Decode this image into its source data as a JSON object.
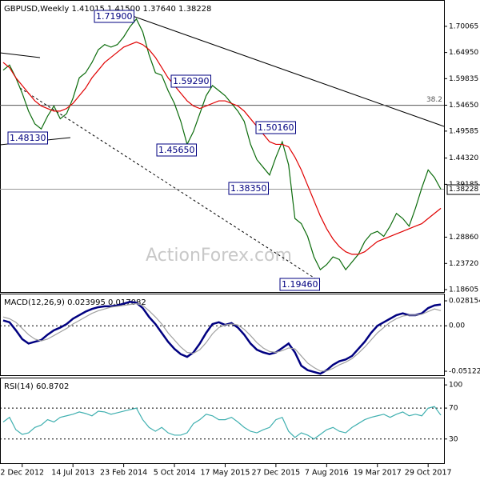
{
  "chart_data": [
    {
      "type": "line",
      "title": "GBPUSD,Weekly  1.41015 1.41500 1.37640 1.38228",
      "watermark": "ActionForex.com",
      "categories": [
        null,
        null,
        null,
        "2 Dec 2012",
        null,
        null,
        null,
        null,
        null,
        null,
        null,
        "14 Jul 2013",
        null,
        null,
        null,
        null,
        null,
        null,
        null,
        "23 Feb 2014",
        null,
        null,
        null,
        null,
        null,
        null,
        null,
        "5 Oct 2014",
        null,
        null,
        null,
        null,
        null,
        null,
        null,
        "17 May 2015",
        null,
        null,
        null,
        null,
        null,
        null,
        null,
        "27 Dec 2015",
        null,
        null,
        null,
        null,
        null,
        null,
        null,
        "7 Aug 2016",
        null,
        null,
        null,
        null,
        null,
        null,
        null,
        "19 Mar 2017",
        null,
        null,
        null,
        null,
        null,
        null,
        null,
        "29 Oct 2017",
        null,
        null
      ],
      "series": [
        {
          "color": "#0b6b0b",
          "values": [
            1.615,
            1.625,
            1.6,
            1.57,
            1.535,
            1.51,
            1.5,
            1.525,
            1.545,
            1.52,
            1.53,
            1.56,
            1.6,
            1.61,
            1.63,
            1.655,
            1.665,
            1.66,
            1.665,
            1.68,
            1.7,
            1.715,
            1.69,
            1.645,
            1.61,
            1.605,
            1.575,
            1.55,
            1.515,
            1.47,
            1.495,
            1.53,
            1.565,
            1.585,
            1.575,
            1.565,
            1.55,
            1.535,
            1.515,
            1.47,
            1.44,
            1.425,
            1.41,
            1.445,
            1.475,
            1.43,
            1.325,
            1.315,
            1.29,
            1.25,
            1.225,
            1.235,
            1.25,
            1.245,
            1.225,
            1.24,
            1.255,
            1.28,
            1.295,
            1.3,
            1.29,
            1.31,
            1.335,
            1.325,
            1.31,
            1.345,
            1.385,
            1.42,
            1.405,
            1.38228
          ]
        },
        {
          "color": "#e00000",
          "values": [
            1.63,
            1.62,
            1.6,
            1.585,
            1.57,
            1.555,
            1.545,
            1.54,
            1.535,
            1.535,
            1.54,
            1.55,
            1.565,
            1.58,
            1.6,
            1.615,
            1.63,
            1.64,
            1.65,
            1.66,
            1.665,
            1.67,
            1.665,
            1.655,
            1.64,
            1.62,
            1.6,
            1.585,
            1.57,
            1.555,
            1.545,
            1.54,
            1.545,
            1.55,
            1.555,
            1.555,
            1.55,
            1.545,
            1.535,
            1.52,
            1.505,
            1.49,
            1.475,
            1.47,
            1.47,
            1.465,
            1.445,
            1.42,
            1.39,
            1.36,
            1.33,
            1.305,
            1.285,
            1.27,
            1.26,
            1.255,
            1.255,
            1.26,
            1.27,
            1.28,
            1.285,
            1.29,
            1.295,
            1.3,
            1.305,
            1.31,
            1.315,
            1.325,
            1.335,
            1.345
          ]
        }
      ],
      "ylim": [
        1.18137,
        1.75055
      ],
      "yticks": [
        1.70065,
        {
          "value": 1.6495,
          "label": "1.64950"
        },
        1.59835,
        {
          "value": 1.5465,
          "label": "1.54650"
        },
        1.49585,
        {
          "value": 1.4432,
          "label": "1.44320"
        },
        1.39185,
        {
          "value": 1.2886,
          "label": "1.28860"
        },
        {
          "value": 1.2372,
          "label": "1.23720"
        },
        1.18605
      ],
      "fib_level": {
        "value": 1.5463,
        "label": "38.2"
      },
      "current_price": 1.38228,
      "annotations": [
        "1.71900",
        "1.59290",
        "1.45650",
        "1.50160",
        "1.38350",
        "1.19460",
        "1.48130"
      ]
    },
    {
      "type": "line",
      "title": "MACD(12,26,9) 0.023995 0.017082",
      "series": [
        {
          "color": "#000080",
          "values": [
            0.006,
            0.004,
            -0.005,
            -0.015,
            -0.02,
            -0.018,
            -0.016,
            -0.01,
            -0.005,
            -0.002,
            0.002,
            0.008,
            0.012,
            0.016,
            0.019,
            0.021,
            0.022,
            0.022,
            0.023,
            0.025,
            0.027,
            0.026,
            0.02,
            0.01,
            0.002,
            -0.008,
            -0.018,
            -0.026,
            -0.032,
            -0.035,
            -0.03,
            -0.02,
            -0.008,
            0.002,
            0.004,
            0.001,
            0.003,
            -0.002,
            -0.01,
            -0.02,
            -0.027,
            -0.03,
            -0.032,
            -0.03,
            -0.025,
            -0.02,
            -0.03,
            -0.045,
            -0.05,
            -0.052,
            -0.054,
            -0.05,
            -0.044,
            -0.04,
            -0.038,
            -0.034,
            -0.026,
            -0.018,
            -0.008,
            0.0,
            0.004,
            0.008,
            0.012,
            0.014,
            0.012,
            0.012,
            0.014,
            0.02,
            0.023,
            0.023995
          ]
        },
        {
          "color": "#a0a0a0",
          "values": [
            0.01,
            0.008,
            0.004,
            -0.003,
            -0.01,
            -0.015,
            -0.017,
            -0.015,
            -0.011,
            -0.007,
            -0.003,
            0.002,
            0.006,
            0.01,
            0.014,
            0.017,
            0.019,
            0.021,
            0.022,
            0.023,
            0.024,
            0.025,
            0.023,
            0.017,
            0.01,
            0.002,
            -0.008,
            -0.016,
            -0.024,
            -0.03,
            -0.031,
            -0.027,
            -0.019,
            -0.009,
            -0.002,
            0.001,
            0.002,
            0.001,
            -0.004,
            -0.011,
            -0.019,
            -0.025,
            -0.029,
            -0.03,
            -0.028,
            -0.025,
            -0.026,
            -0.034,
            -0.042,
            -0.047,
            -0.051,
            -0.051,
            -0.048,
            -0.044,
            -0.041,
            -0.037,
            -0.031,
            -0.024,
            -0.016,
            -0.008,
            -0.002,
            0.004,
            0.008,
            0.011,
            0.012,
            0.012,
            0.013,
            0.016,
            0.019,
            0.017082
          ]
        }
      ],
      "ylim": [
        -0.0557,
        0.0354
      ],
      "yticks": [
        0.028154,
        {
          "value": 0,
          "label": "0.00"
        },
        -0.051226
      ],
      "levels": [
        0
      ]
    },
    {
      "type": "line",
      "title": "RSI(14) 60.8702",
      "series": [
        {
          "color": "#40b0b0",
          "values": [
            52,
            58,
            42,
            36,
            38,
            45,
            48,
            55,
            52,
            58,
            60,
            62,
            65,
            63,
            60,
            66,
            65,
            62,
            64,
            66,
            68,
            70,
            55,
            45,
            40,
            45,
            38,
            35,
            35,
            38,
            50,
            55,
            62,
            60,
            55,
            55,
            58,
            52,
            45,
            40,
            38,
            42,
            45,
            55,
            58,
            40,
            32,
            38,
            35,
            30,
            36,
            42,
            45,
            40,
            38,
            45,
            50,
            55,
            58,
            60,
            62,
            58,
            62,
            65,
            60,
            62,
            60,
            70,
            72,
            60.8702
          ]
        }
      ],
      "ylim": [
        -1.3,
        108.4
      ],
      "yticks": [
        100,
        70,
        30
      ],
      "levels": [
        70,
        30
      ]
    }
  ]
}
